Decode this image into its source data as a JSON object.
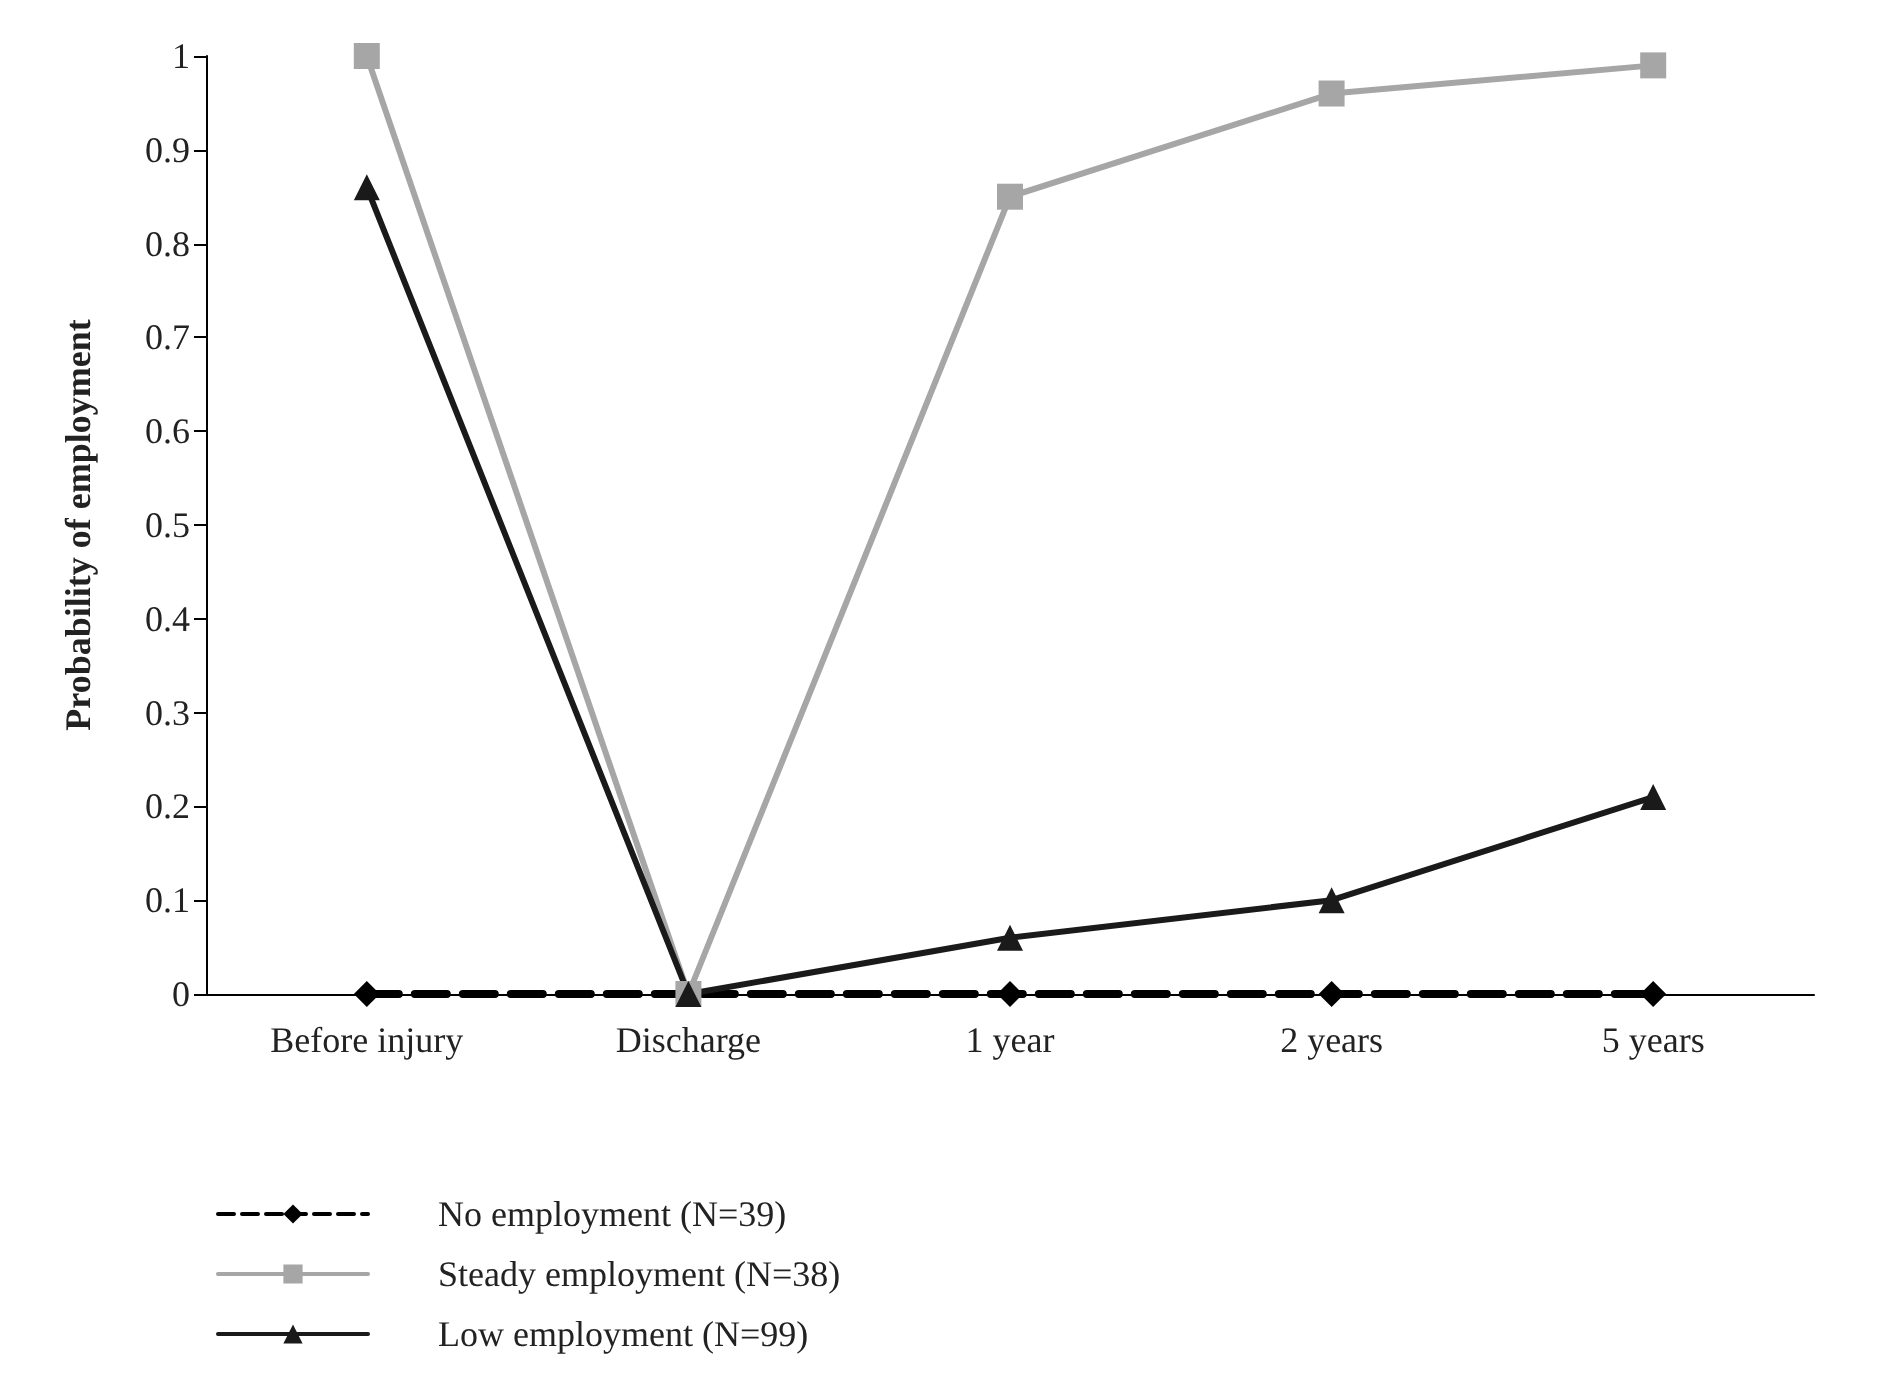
{
  "chart_data": {
    "type": "line",
    "ylabel": "Probability of employment",
    "categories": [
      "Before injury",
      "Discharge",
      "1 year",
      "2 years",
      "5 years"
    ],
    "series": [
      {
        "name": "No employment (N=39)",
        "color": "#000000",
        "marker": "diamond",
        "line_style": "dashed",
        "values": [
          0,
          0,
          0,
          0,
          0
        ]
      },
      {
        "name": "Steady employment (N=38)",
        "color": "#a6a6a6",
        "marker": "square",
        "line_style": "solid",
        "values": [
          1,
          0,
          0.85,
          0.96,
          0.99
        ]
      },
      {
        "name": "Low employment (N=99)",
        "color": "#1a1a1a",
        "marker": "triangle",
        "line_style": "solid",
        "values": [
          0.86,
          0,
          0.06,
          0.1,
          0.21
        ]
      }
    ],
    "ylim": [
      0,
      1
    ],
    "yticks": [
      0,
      0.1,
      0.2,
      0.3,
      0.4,
      0.5,
      0.6,
      0.7,
      0.8,
      0.9,
      1
    ],
    "grid": false,
    "legend": "bottom left"
  }
}
